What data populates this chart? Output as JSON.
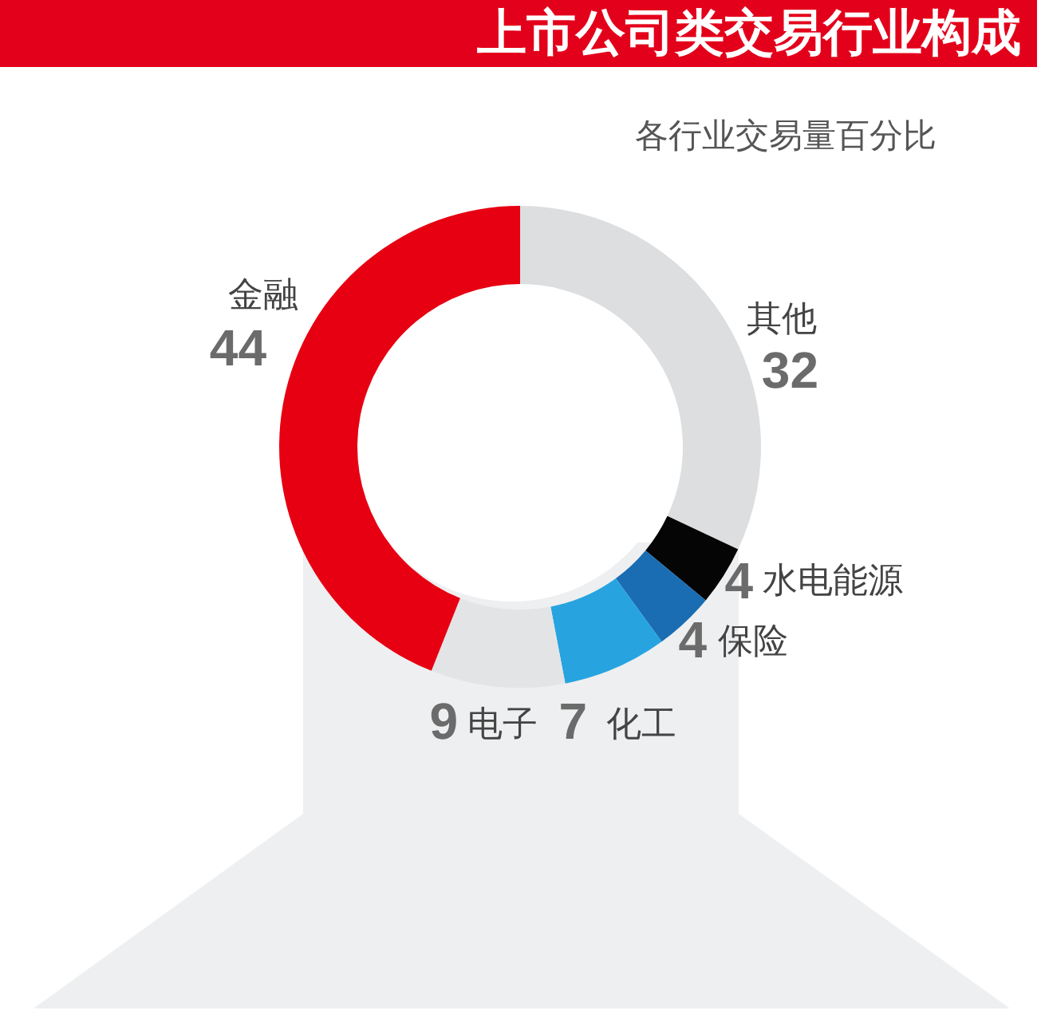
{
  "chart_data": {
    "type": "donut",
    "title": "上市公司类交易行业构成",
    "subtitle": "各行业交易量百分比",
    "categories": [
      "其他",
      "水电能源",
      "保险",
      "化工",
      "电子",
      "金融"
    ],
    "values": [
      32,
      4,
      4,
      7,
      9,
      44
    ],
    "colors": [
      "#dcdee0",
      "#050505",
      "#1a6db3",
      "#27a4e0",
      "#e3e4e6",
      "#e60012"
    ],
    "data_labels": true
  }
}
